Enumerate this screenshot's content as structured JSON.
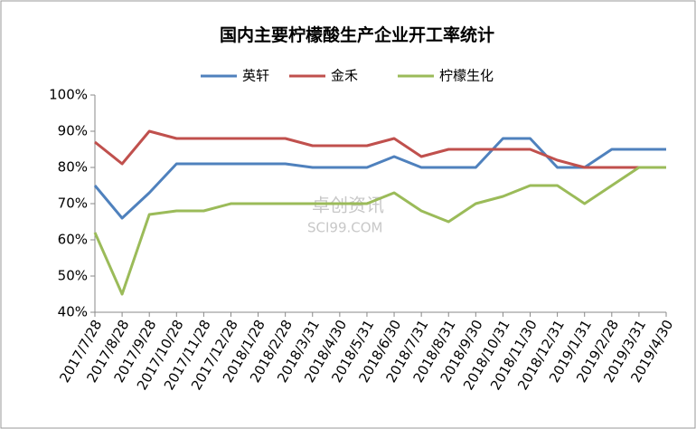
{
  "chart_data": {
    "type": "line",
    "title": "国内主要柠檬酸生产企业开工率统计",
    "watermark": [
      "卓创资讯",
      "SCI99.COM"
    ],
    "categories": [
      "2017/7/28",
      "2017/8/28",
      "2017/9/28",
      "2017/10/28",
      "2017/11/28",
      "2017/12/28",
      "2018/1/28",
      "2018/2/28",
      "2018/3/31",
      "2018/4/30",
      "2018/5/31",
      "2018/6/30",
      "2018/7/31",
      "2018/8/31",
      "2018/9/30",
      "2018/10/31",
      "2018/11/30",
      "2018/12/31",
      "2019/1/31",
      "2019/2/28",
      "2019/3/31",
      "2019/4/30"
    ],
    "series": [
      {
        "name": "英轩",
        "color": "#4f81bd",
        "values": [
          75,
          66,
          73,
          81,
          81,
          81,
          81,
          81,
          80,
          80,
          80,
          83,
          80,
          80,
          80,
          88,
          88,
          80,
          80,
          85,
          85,
          85
        ]
      },
      {
        "name": "金禾",
        "color": "#c0504d",
        "values": [
          87,
          81,
          90,
          88,
          88,
          88,
          88,
          88,
          86,
          86,
          86,
          88,
          83,
          85,
          85,
          85,
          85,
          82,
          80,
          80,
          80,
          null
        ]
      },
      {
        "name": "柠檬生化",
        "color": "#9bbb59",
        "values": [
          62,
          45,
          67,
          68,
          68,
          70,
          70,
          70,
          70,
          70,
          70,
          73,
          68,
          65,
          70,
          72,
          75,
          75,
          70,
          75,
          80,
          80
        ]
      }
    ],
    "ylim": [
      40,
      100
    ],
    "yticks": [
      {
        "value": 40,
        "label": "40%"
      },
      {
        "value": 50,
        "label": "50%"
      },
      {
        "value": 60,
        "label": "60%"
      },
      {
        "value": 70,
        "label": "70%"
      },
      {
        "value": 80,
        "label": "80%"
      },
      {
        "value": 90,
        "label": "90%"
      },
      {
        "value": 100,
        "label": "100%"
      }
    ],
    "grid": false,
    "legend": "top"
  }
}
